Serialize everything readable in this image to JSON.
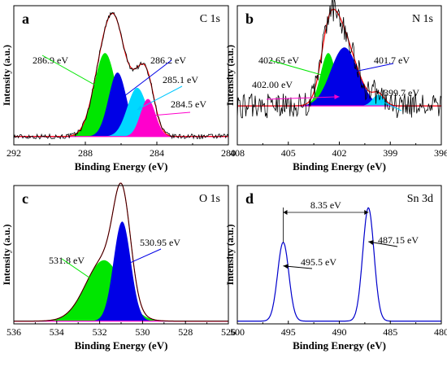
{
  "chart_data": [
    {
      "letter": "a",
      "title": "C 1s",
      "type": "line",
      "xlabel": "Binding Energy (eV)",
      "ylabel": "Intensity (a.u.)",
      "xlim": [
        292,
        280
      ],
      "xticks": [
        292,
        288,
        284,
        280
      ],
      "baseline": 0.06,
      "envelope": 1.0,
      "peaks": [
        {
          "center": 286.9,
          "amp": 0.6,
          "width": 0.62,
          "color": "#00e600"
        },
        {
          "center": 286.2,
          "amp": 0.46,
          "width": 0.5,
          "color": "#0000e6"
        },
        {
          "center": 285.1,
          "amp": 0.35,
          "width": 0.55,
          "color": "#00d8ff"
        },
        {
          "center": 284.5,
          "amp": 0.27,
          "width": 0.42,
          "color": "#ff00cc"
        }
      ],
      "labels": [
        {
          "text": "286.9 eV",
          "peak": 0
        },
        {
          "text": "286.2 eV",
          "peak": 1
        },
        {
          "text": "285.1 eV",
          "peak": 2
        },
        {
          "text": "284.5 eV",
          "peak": 3
        }
      ],
      "noise": 0.018
    },
    {
      "letter": "b",
      "title": "N 1s",
      "type": "line",
      "xlabel": "Binding Energy (eV)",
      "ylabel": "Intensity (a.u.)",
      "xlim": [
        408,
        396
      ],
      "xticks": [
        408,
        405,
        402,
        399,
        396
      ],
      "baseline": 0.28,
      "envelope": 1.0,
      "peaks": [
        {
          "center": 402.65,
          "amp": 0.38,
          "width": 0.45,
          "color": "#00e600"
        },
        {
          "center": 402.0,
          "amp": 0.12,
          "width": 0.45,
          "color": "#ff00cc"
        },
        {
          "center": 401.7,
          "amp": 0.42,
          "width": 0.8,
          "color": "#0000e6"
        },
        {
          "center": 399.7,
          "amp": 0.08,
          "width": 0.35,
          "color": "#00d8ff"
        }
      ],
      "labels": [
        {
          "text": "402.65 eV",
          "peak": 0
        },
        {
          "text": "401.7 eV",
          "peak": 2
        },
        {
          "text": "402.00 eV",
          "peak": 1
        },
        {
          "text": "399.7 eV",
          "peak": 3
        }
      ],
      "noise": 0.09
    },
    {
      "letter": "c",
      "title": "O 1s",
      "type": "line",
      "xlabel": "Binding Energy (eV)",
      "ylabel": "Intensity (a.u.)",
      "xlim": [
        536,
        526
      ],
      "xticks": [
        536,
        534,
        532,
        530,
        528,
        526
      ],
      "baseline": 0.02,
      "envelope": 1.0,
      "peaks": [
        {
          "center": 531.8,
          "amp": 0.44,
          "width": 0.85,
          "color": "#00e600"
        },
        {
          "center": 530.95,
          "amp": 0.72,
          "width": 0.4,
          "color": "#0000e6"
        }
      ],
      "labels": [
        {
          "text": "531.8 eV",
          "peak": 0
        },
        {
          "text": "530.95 eV",
          "peak": 1
        }
      ],
      "noise": 0.0
    },
    {
      "letter": "d",
      "title": "Sn 3d",
      "type": "line",
      "xlabel": "Binding Energy (eV)",
      "ylabel": "Intensity (a.u.)",
      "xlim": [
        500,
        480
      ],
      "xticks": [
        500,
        495,
        490,
        485,
        480
      ],
      "baseline": 0.02,
      "line_color": "#0000cc",
      "peaks": [
        {
          "center": 495.5,
          "amp": 0.57,
          "width": 0.55
        },
        {
          "center": 487.15,
          "amp": 0.82,
          "width": 0.55
        }
      ],
      "labels": [
        {
          "text": "495.5 eV",
          "peak": 0
        },
        {
          "text": "487.15 eV",
          "peak": 1
        }
      ],
      "splitting": "8.35 eV",
      "noise": 0.0
    }
  ]
}
